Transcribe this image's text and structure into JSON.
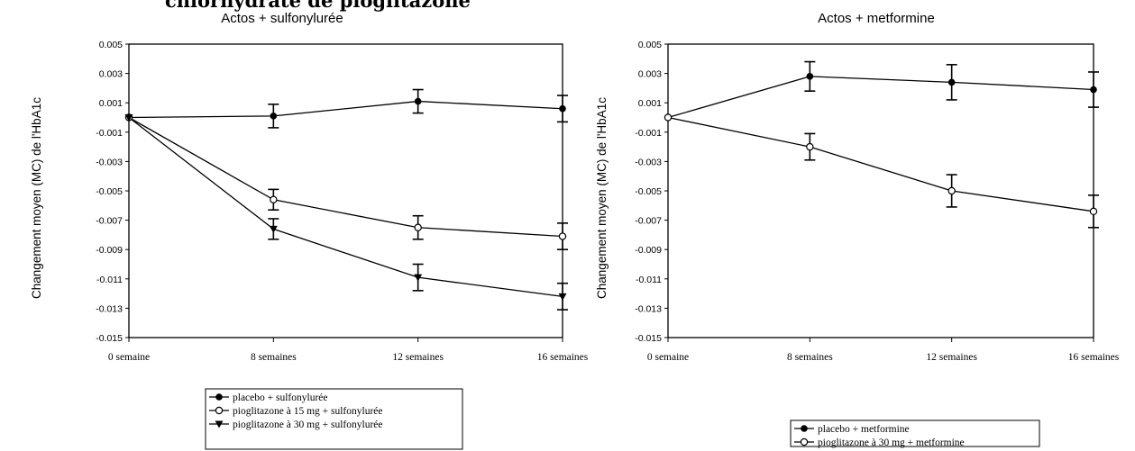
{
  "page_title_fragment": "chlorhydrate de pioglitazone",
  "chart_data": [
    {
      "type": "line",
      "title": "Actos + sulfonylurée",
      "ylabel": "Changement moyen (MC) de l'HbA1c",
      "ylim": [
        -0.015,
        0.005
      ],
      "yticks": [
        "0.005",
        "0.003",
        "0.001",
        "-0.001",
        "-0.003",
        "-0.005",
        "-0.007",
        "-0.009",
        "-0.011",
        "-0.013",
        "-0.015"
      ],
      "categories": [
        "0 semaine",
        "8 semaines",
        "12 semaines",
        "16 semaines"
      ],
      "legend_position": "below",
      "series": [
        {
          "name": "placebo + sulfonylurée",
          "marker": "circle-filled",
          "values": [
            0,
            0.0001,
            0.0011,
            0.0006
          ],
          "error": [
            0,
            0.0008,
            0.0008,
            0.0009
          ]
        },
        {
          "name": "pioglitazone à 15 mg + sulfonylurée",
          "marker": "circle-open",
          "values": [
            0,
            -0.0056,
            -0.0075,
            -0.0081
          ],
          "error": [
            0,
            0.0007,
            0.0008,
            0.0009
          ]
        },
        {
          "name": "pioglitazone à 30 mg + sulfonylurée",
          "marker": "triangle-filled",
          "values": [
            0,
            -0.0076,
            -0.0109,
            -0.0122
          ],
          "error": [
            0,
            0.0007,
            0.0009,
            0.0009
          ]
        }
      ]
    },
    {
      "type": "line",
      "title": "Actos + metformine",
      "ylabel": "Changement moyen (MC) de l'HbA1c",
      "ylim": [
        -0.015,
        0.005
      ],
      "yticks": [
        "0.005",
        "0.003",
        "0.001",
        "-0.001",
        "-0.003",
        "-0.005",
        "-0.007",
        "-0.009",
        "-0.011",
        "-0.013",
        "-0.015"
      ],
      "categories": [
        "0 semaine",
        "8 semaines",
        "12 semaines",
        "16 semaines"
      ],
      "legend_position": "below",
      "series": [
        {
          "name": "placebo + metformine",
          "marker": "circle-filled",
          "values": [
            0,
            0.0028,
            0.0024,
            0.0019
          ],
          "error": [
            0,
            0.001,
            0.0012,
            0.0012
          ]
        },
        {
          "name": "pioglitazone à 30 mg + metformine",
          "marker": "circle-open",
          "values": [
            0,
            -0.002,
            -0.005,
            -0.0064
          ],
          "error": [
            0,
            0.0009,
            0.0011,
            0.0011
          ]
        }
      ]
    }
  ]
}
